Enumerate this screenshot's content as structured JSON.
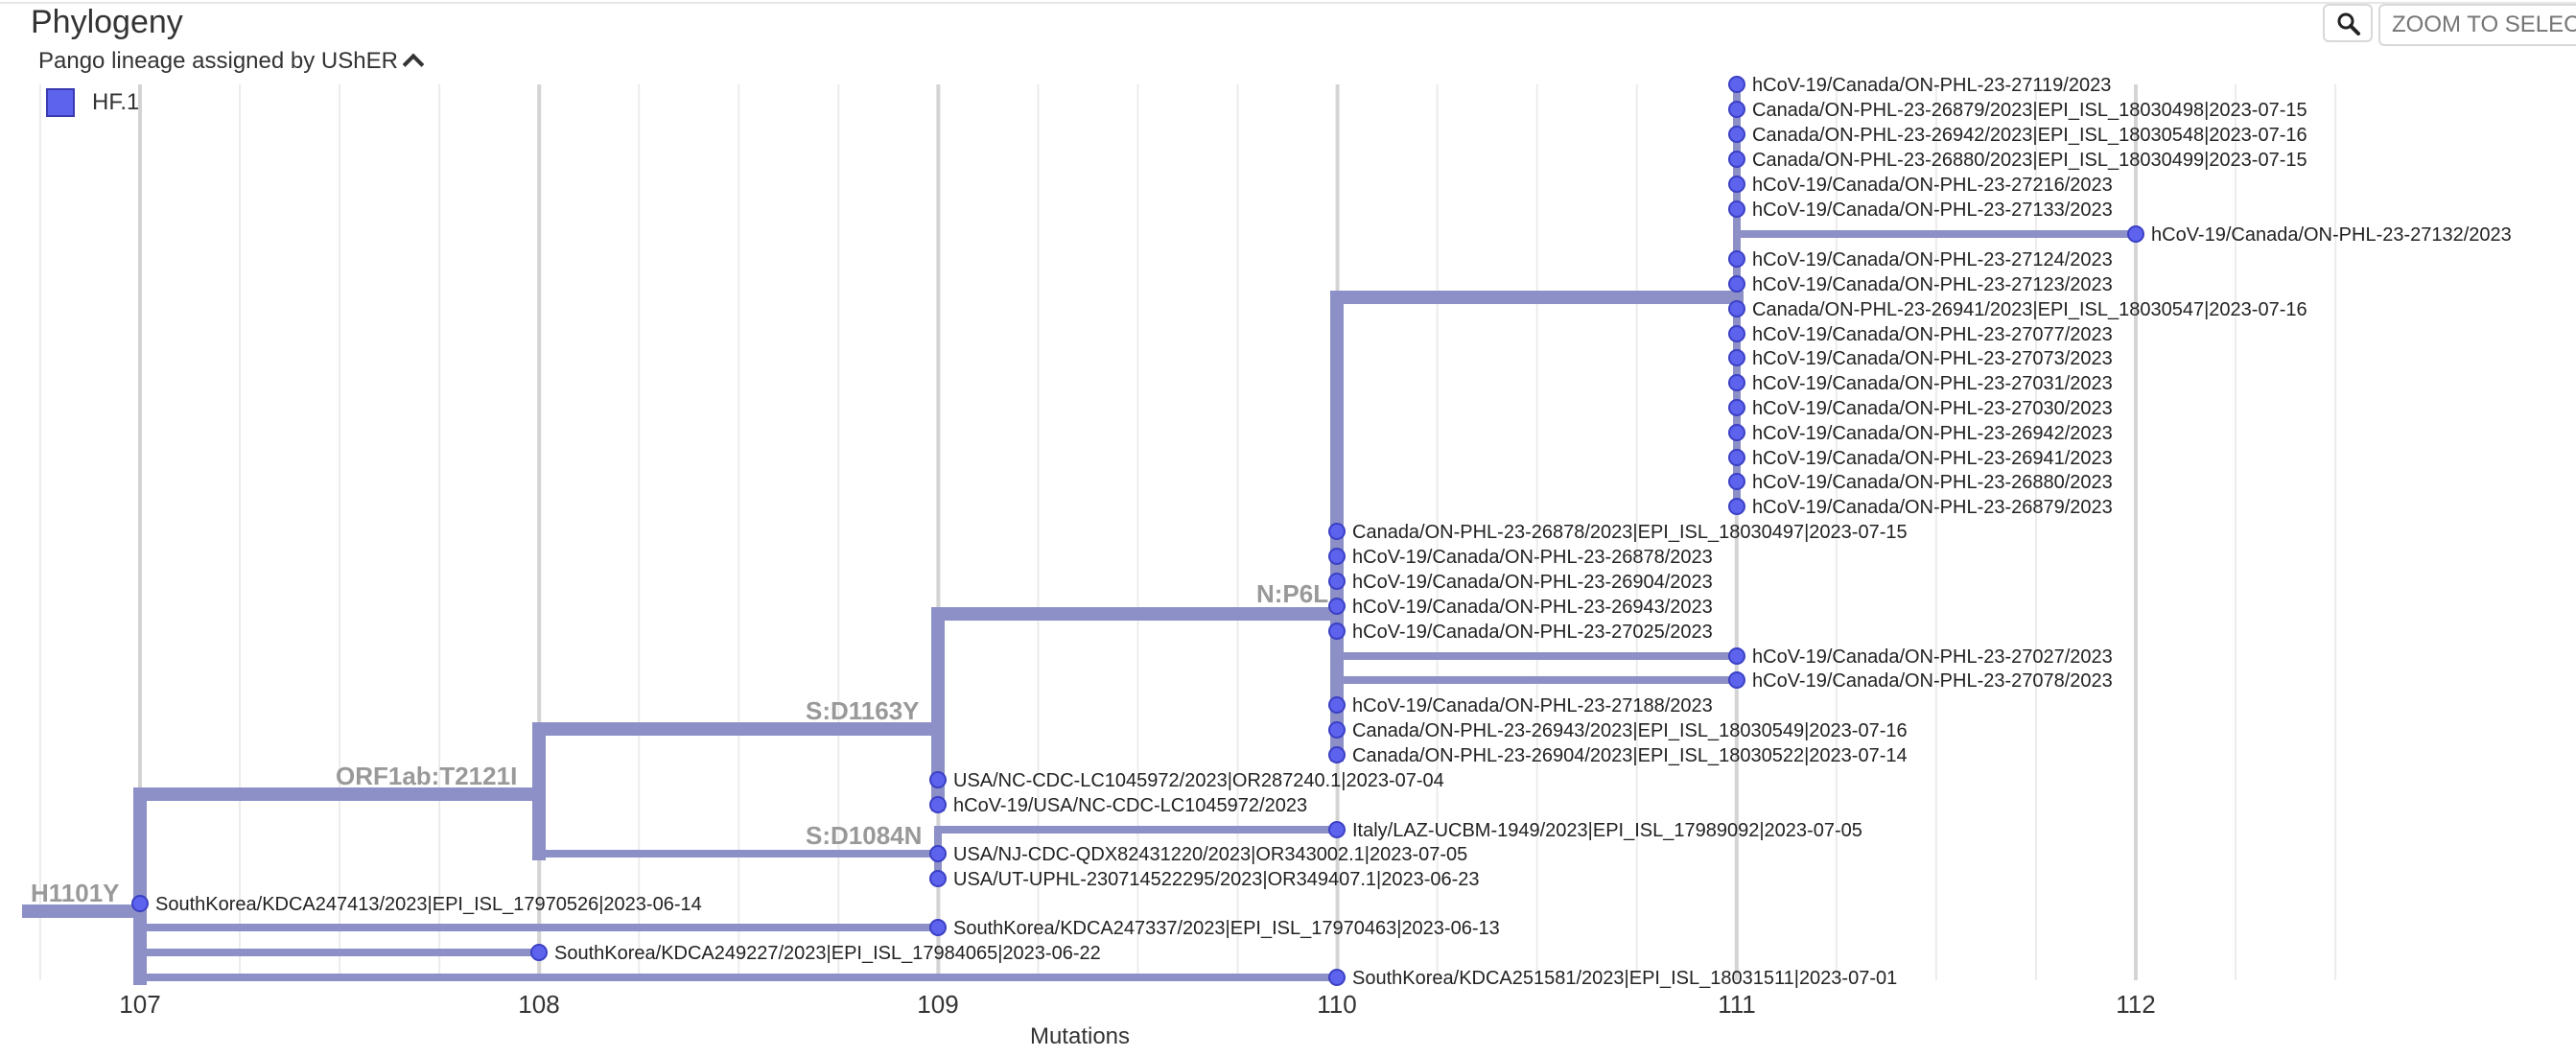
{
  "header": {
    "title": "Phylogeny",
    "zoom_placeholder": "ZOOM TO SELECTED",
    "search_icon": "magnifier-icon"
  },
  "legend": {
    "title": "Pango lineage assigned by UShER",
    "toggle_icon": "chevron-up-icon",
    "items": [
      {
        "label": "HF.1",
        "color": "#5e63ee"
      }
    ]
  },
  "colors": {
    "branch": "#8c90c6",
    "node": "#5e63ee",
    "node_stroke": "#3b40c4",
    "grid_major": "#d4d4d4",
    "grid_minor": "#ececec"
  },
  "axis": {
    "label": "Mutations",
    "ticks": [
      "107",
      "108",
      "109",
      "110",
      "111",
      "112"
    ]
  },
  "mutations": [
    {
      "label": "H1101Y"
    },
    {
      "label": "ORF1ab:T2121I"
    },
    {
      "label": "S:D1163Y"
    },
    {
      "label": "N:P6L"
    },
    {
      "label": "S:D1084N"
    }
  ],
  "tips": [
    {
      "label": "hCoV-19/Canada/ON-PHL-23-27119/2023"
    },
    {
      "label": "Canada/ON-PHL-23-26879/2023|EPI_ISL_18030498|2023-07-15"
    },
    {
      "label": "Canada/ON-PHL-23-26942/2023|EPI_ISL_18030548|2023-07-16"
    },
    {
      "label": "Canada/ON-PHL-23-26880/2023|EPI_ISL_18030499|2023-07-15"
    },
    {
      "label": "hCoV-19/Canada/ON-PHL-23-27216/2023"
    },
    {
      "label": "hCoV-19/Canada/ON-PHL-23-27133/2023"
    },
    {
      "label": "hCoV-19/Canada/ON-PHL-23-27132/2023"
    },
    {
      "label": "hCoV-19/Canada/ON-PHL-23-27124/2023"
    },
    {
      "label": "hCoV-19/Canada/ON-PHL-23-27123/2023"
    },
    {
      "label": "Canada/ON-PHL-23-26941/2023|EPI_ISL_18030547|2023-07-16"
    },
    {
      "label": "hCoV-19/Canada/ON-PHL-23-27077/2023"
    },
    {
      "label": "hCoV-19/Canada/ON-PHL-23-27073/2023"
    },
    {
      "label": "hCoV-19/Canada/ON-PHL-23-27031/2023"
    },
    {
      "label": "hCoV-19/Canada/ON-PHL-23-27030/2023"
    },
    {
      "label": "hCoV-19/Canada/ON-PHL-23-26942/2023"
    },
    {
      "label": "hCoV-19/Canada/ON-PHL-23-26941/2023"
    },
    {
      "label": "hCoV-19/Canada/ON-PHL-23-26880/2023"
    },
    {
      "label": "hCoV-19/Canada/ON-PHL-23-26879/2023"
    },
    {
      "label": "Canada/ON-PHL-23-26878/2023|EPI_ISL_18030497|2023-07-15"
    },
    {
      "label": "hCoV-19/Canada/ON-PHL-23-26878/2023"
    },
    {
      "label": "hCoV-19/Canada/ON-PHL-23-26904/2023"
    },
    {
      "label": "hCoV-19/Canada/ON-PHL-23-26943/2023"
    },
    {
      "label": "hCoV-19/Canada/ON-PHL-23-27025/2023"
    },
    {
      "label": "hCoV-19/Canada/ON-PHL-23-27027/2023"
    },
    {
      "label": "hCoV-19/Canada/ON-PHL-23-27078/2023"
    },
    {
      "label": "hCoV-19/Canada/ON-PHL-23-27188/2023"
    },
    {
      "label": "Canada/ON-PHL-23-26943/2023|EPI_ISL_18030549|2023-07-16"
    },
    {
      "label": "Canada/ON-PHL-23-26904/2023|EPI_ISL_18030522|2023-07-14"
    },
    {
      "label": "USA/NC-CDC-LC1045972/2023|OR287240.1|2023-07-04"
    },
    {
      "label": "hCoV-19/USA/NC-CDC-LC1045972/2023"
    },
    {
      "label": "Italy/LAZ-UCBM-1949/2023|EPI_ISL_17989092|2023-07-05"
    },
    {
      "label": "USA/NJ-CDC-QDX82431220/2023|OR343002.1|2023-07-05"
    },
    {
      "label": "USA/UT-UPHL-230714522295/2023|OR349407.1|2023-06-23"
    },
    {
      "label": "SouthKorea/KDCA247413/2023|EPI_ISL_17970526|2023-06-14"
    },
    {
      "label": "SouthKorea/KDCA247337/2023|EPI_ISL_17970463|2023-06-13"
    },
    {
      "label": "SouthKorea/KDCA249227/2023|EPI_ISL_17984065|2023-06-22"
    },
    {
      "label": "SouthKorea/KDCA251581/2023|EPI_ISL_18031511|2023-07-01"
    }
  ]
}
